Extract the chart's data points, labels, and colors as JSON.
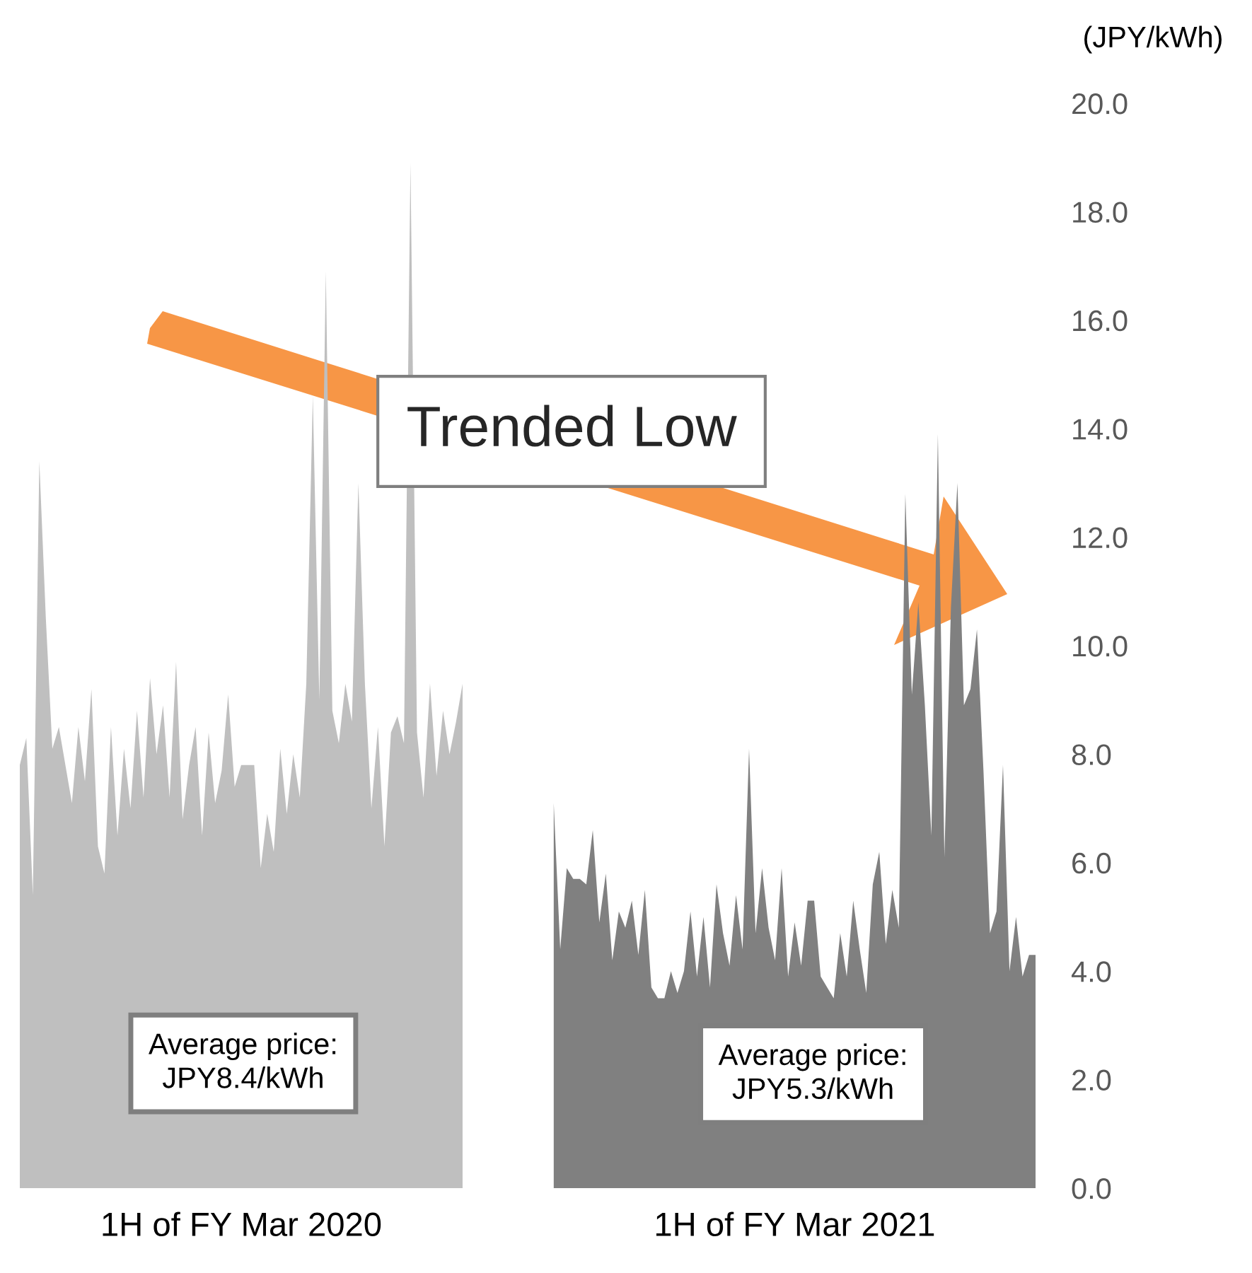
{
  "chart_data": {
    "type": "area",
    "ylabel": "(JPY/kWh)",
    "ylim": [
      0,
      20
    ],
    "categories": [
      null,
      null,
      null,
      null,
      null,
      null,
      null,
      null,
      null,
      null,
      null,
      null,
      null,
      null,
      null,
      null,
      null,
      null,
      null,
      null,
      null,
      null,
      null,
      null,
      null,
      null,
      null,
      null,
      null,
      null,
      null,
      null,
      null,
      null,
      "1H of FY Mar 2020",
      null,
      null,
      null,
      null,
      null,
      null,
      null,
      null,
      null,
      null,
      null,
      null,
      null,
      null,
      null,
      null,
      null,
      null,
      null,
      null,
      null,
      null,
      null,
      null,
      null,
      null,
      null,
      null,
      null,
      null,
      null,
      null,
      null,
      null,
      null,
      null,
      null,
      null,
      null,
      null,
      null,
      null,
      null,
      null,
      null,
      null,
      null,
      null,
      null,
      null,
      null,
      null,
      null,
      null,
      null,
      null,
      null,
      null,
      null,
      null,
      null,
      null,
      null,
      null,
      null,
      null,
      null,
      null,
      null,
      null,
      null,
      null,
      null,
      null,
      null,
      null,
      null,
      null,
      null,
      null,
      null,
      null,
      null,
      null,
      "1H of FY Mar 2021",
      null,
      null,
      null,
      null,
      null,
      null,
      null,
      null,
      null,
      null,
      null,
      null,
      null,
      null,
      null,
      null,
      null,
      null,
      null,
      null,
      null,
      null,
      null,
      null,
      null,
      null,
      null,
      null,
      null,
      null,
      null,
      null,
      null,
      null,
      null,
      null,
      null
    ],
    "yticks": [
      {
        "value": 0,
        "label": "0.0"
      },
      {
        "value": 2,
        "label": "2.0"
      },
      {
        "value": 4,
        "label": "4.0"
      },
      {
        "value": 6,
        "label": "6.0"
      },
      {
        "value": 8,
        "label": "8.0"
      },
      {
        "value": 10,
        "label": "10.0"
      },
      {
        "value": 12,
        "label": "12.0"
      },
      {
        "value": 14,
        "label": "14.0"
      },
      {
        "value": 16,
        "label": "16.0"
      },
      {
        "value": 18,
        "label": "18.0"
      },
      {
        "value": 20,
        "label": "20.0"
      }
    ],
    "series": [
      {
        "color": "#bfbfbf",
        "values": [
          7.8,
          8.3,
          5.4,
          13.4,
          10.5,
          8.1,
          8.5,
          7.8,
          7.1,
          8.5,
          7.5,
          9.2,
          6.3,
          5.8,
          8.5,
          6.5,
          8.1,
          7.0,
          8.8,
          7.2,
          9.4,
          8.0,
          8.9,
          7.2,
          9.7,
          6.8,
          7.8,
          8.5,
          6.5,
          8.4,
          7.1,
          7.7,
          9.1,
          7.4,
          7.8,
          7.8,
          7.8,
          5.9,
          6.9,
          6.2,
          8.1,
          6.9,
          8.0,
          7.2,
          9.3,
          14.6,
          9.0,
          16.9,
          8.8,
          8.2,
          9.3,
          8.6,
          13.0,
          9.3,
          7.0,
          8.5,
          6.3,
          8.4,
          8.7,
          8.2,
          18.9,
          8.4,
          7.2,
          9.3,
          7.6,
          8.8,
          8.0,
          8.6,
          9.3,
          null,
          null,
          null,
          null,
          null,
          null,
          null,
          null,
          null,
          null,
          null,
          null,
          null,
          null,
          null,
          null,
          null,
          null,
          null,
          null,
          null,
          null,
          null,
          null,
          null,
          null,
          null,
          null,
          null,
          null,
          null,
          null,
          null,
          null,
          null,
          null,
          null,
          null,
          null,
          null,
          null,
          null,
          null,
          null,
          null,
          null,
          null,
          null,
          null,
          null,
          null,
          null,
          null,
          null,
          null,
          null,
          null,
          null,
          null,
          null,
          null,
          null,
          null,
          null,
          null,
          null,
          null,
          null,
          null,
          null,
          null,
          null,
          null,
          null,
          null,
          null,
          null,
          null,
          null,
          null,
          null,
          null,
          null,
          null,
          null,
          null,
          null,
          null
        ]
      },
      {
        "color": "#808080",
        "values": [
          null,
          null,
          null,
          null,
          null,
          null,
          null,
          null,
          null,
          null,
          null,
          null,
          null,
          null,
          null,
          null,
          null,
          null,
          null,
          null,
          null,
          null,
          null,
          null,
          null,
          null,
          null,
          null,
          null,
          null,
          null,
          null,
          null,
          null,
          null,
          null,
          null,
          null,
          null,
          null,
          null,
          null,
          null,
          null,
          null,
          null,
          null,
          null,
          null,
          null,
          null,
          null,
          null,
          null,
          null,
          null,
          null,
          null,
          null,
          null,
          null,
          null,
          null,
          null,
          null,
          null,
          null,
          null,
          null,
          null,
          null,
          null,
          null,
          null,
          null,
          null,
          null,
          null,
          null,
          null,
          null,
          null,
          7.1,
          4.4,
          5.9,
          5.7,
          5.7,
          5.6,
          6.6,
          4.9,
          5.8,
          4.2,
          5.1,
          4.8,
          5.3,
          4.3,
          5.5,
          3.7,
          3.5,
          3.5,
          4.0,
          3.6,
          4.0,
          5.1,
          3.9,
          5.0,
          3.7,
          5.6,
          4.7,
          4.1,
          5.4,
          4.4,
          8.1,
          4.7,
          5.9,
          4.8,
          4.2,
          5.9,
          3.9,
          4.9,
          4.1,
          5.3,
          5.3,
          3.9,
          3.7,
          3.5,
          4.7,
          3.9,
          5.3,
          4.4,
          3.6,
          5.6,
          6.2,
          4.5,
          5.5,
          4.8,
          12.8,
          9.1,
          10.8,
          8.9,
          6.5,
          13.9,
          6.1,
          10.7,
          13.0,
          8.9,
          9.2,
          10.3,
          7.7,
          4.7,
          5.1,
          7.8,
          4.0,
          5.0,
          3.9,
          4.3,
          4.3
        ]
      }
    ],
    "annotations": [
      "Average price:\nJPY8.4/kWh",
      "Average price:\nJPY5.3/kWh",
      "Trended Low"
    ]
  }
}
